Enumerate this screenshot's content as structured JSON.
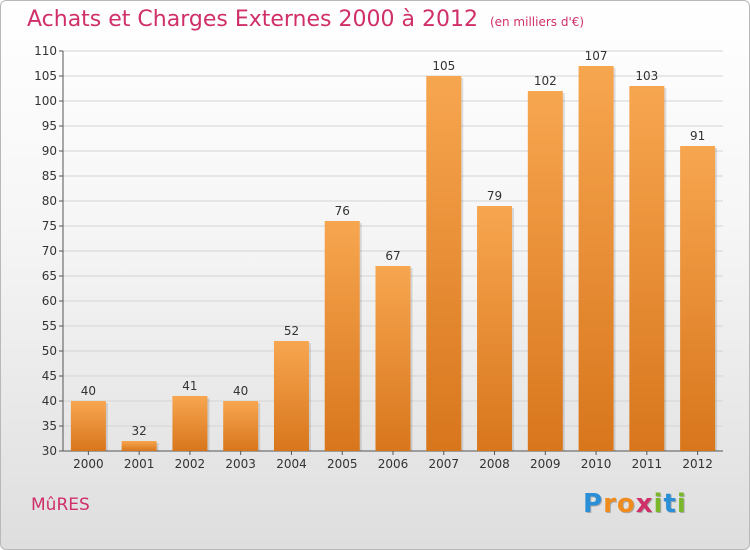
{
  "chart_data": {
    "type": "bar",
    "title": "Achats et Charges Externes 2000 à 2012",
    "subtitle": "(en milliers d'€)",
    "categories": [
      "2000",
      "2001",
      "2002",
      "2003",
      "2004",
      "2005",
      "2006",
      "2007",
      "2008",
      "2009",
      "2010",
      "2011",
      "2012"
    ],
    "values": [
      40,
      32,
      41,
      40,
      52,
      76,
      67,
      105,
      79,
      102,
      107,
      103,
      91
    ],
    "ylim": [
      30,
      110
    ],
    "yticks": [
      30,
      35,
      40,
      45,
      50,
      55,
      60,
      65,
      70,
      75,
      80,
      85,
      90,
      95,
      100,
      105,
      110
    ],
    "grid": true,
    "bar_color_top": "#f7a650",
    "bar_color_bottom": "#d8761c"
  },
  "commune": "MûRES",
  "logo": {
    "letters": [
      "P",
      "r",
      "o",
      "x",
      "i",
      "t",
      "i"
    ],
    "colors": [
      "#2a8fd6",
      "#f08c1e",
      "#f08c1e",
      "#d0306a",
      "#7ab72a",
      "#2a8fd6",
      "#7ab72a"
    ]
  }
}
